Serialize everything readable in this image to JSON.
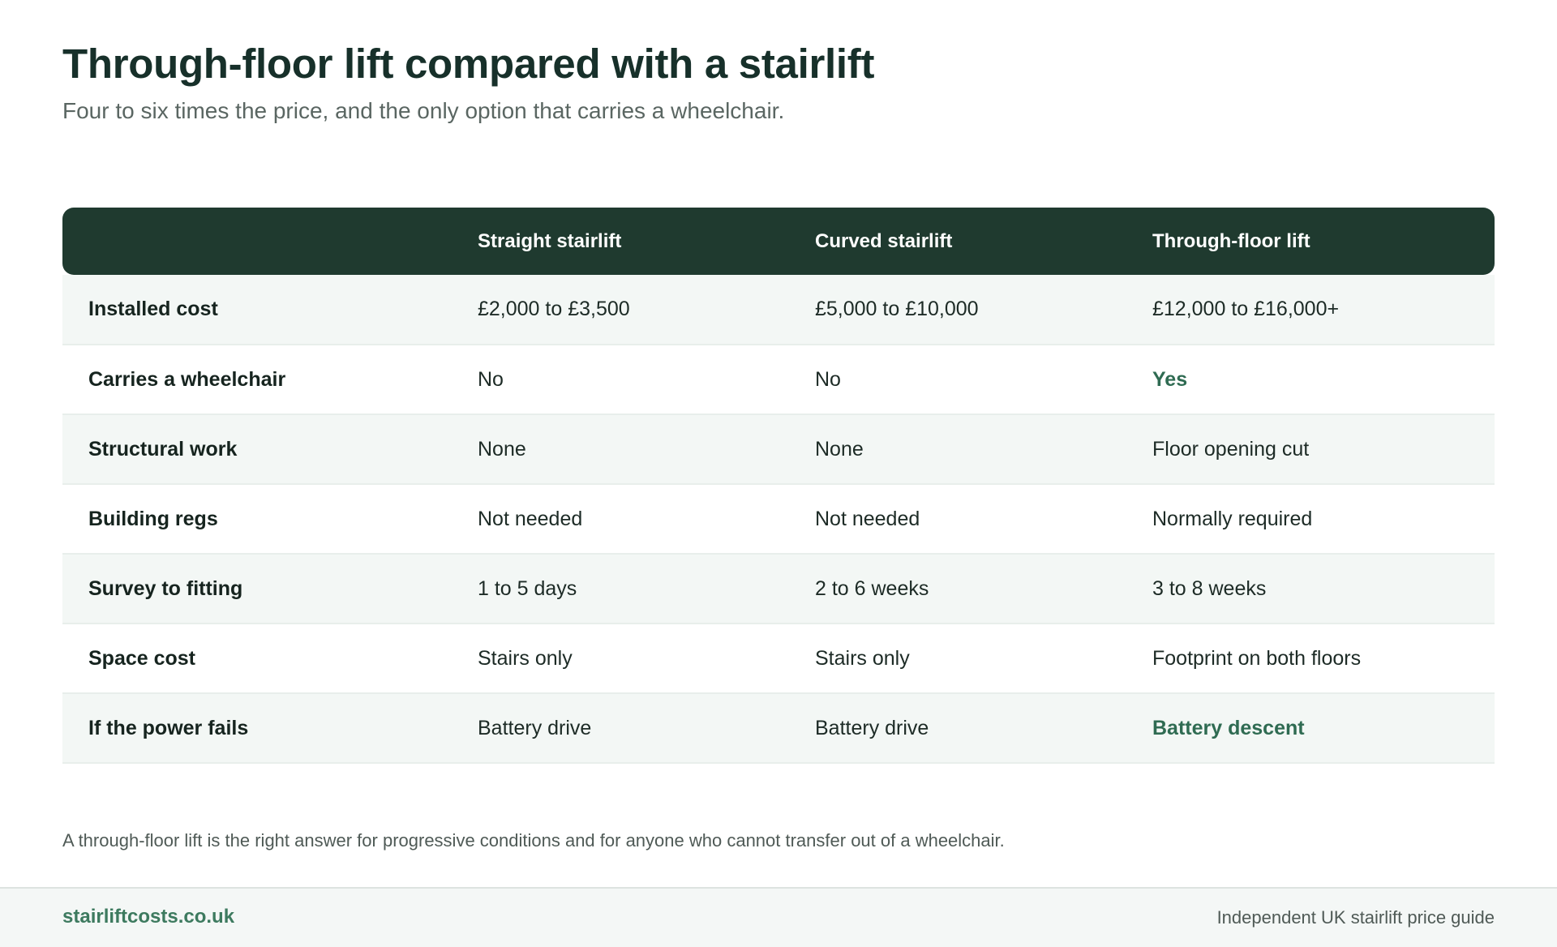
{
  "header": {
    "title": "Through-floor lift compared with a stairlift",
    "subtitle": "Four to six times the price, and the only option that carries a wheelchair."
  },
  "table": {
    "columns": [
      "",
      "Straight stairlift",
      "Curved stairlift",
      "Through-floor lift"
    ],
    "rows": [
      {
        "label": "Installed cost",
        "straight": "£2,000 to £3,500",
        "curved": "£5,000 to £10,000",
        "through_floor": "£12,000 to £16,000+"
      },
      {
        "label": "Carries a wheelchair",
        "straight": "No",
        "curved": "No",
        "through_floor": "Yes"
      },
      {
        "label": "Structural work",
        "straight": "None",
        "curved": "None",
        "through_floor": "Floor opening cut"
      },
      {
        "label": "Building regs",
        "straight": "Not needed",
        "curved": "Not needed",
        "through_floor": "Normally required"
      },
      {
        "label": "Survey to fitting",
        "straight": "1 to 5 days",
        "curved": "2 to 6 weeks",
        "through_floor": "3 to 8 weeks"
      },
      {
        "label": "Space cost",
        "straight": "Stairs only",
        "curved": "Stairs only",
        "through_floor": "Footprint on both floors"
      },
      {
        "label": "If the power fails",
        "straight": "Battery drive",
        "curved": "Battery drive",
        "through_floor": "Battery descent"
      }
    ]
  },
  "note": "A through-floor lift is the right answer for progressive conditions and for anyone who cannot transfer out of a wheelchair.",
  "footer": {
    "brand": "stairliftcosts.co.uk",
    "tagline": "Independent UK stairlift price guide"
  },
  "colors": {
    "header_bg": "#1f3a2f",
    "accent": "#2f6b52",
    "row_shade": "#f3f7f5"
  }
}
